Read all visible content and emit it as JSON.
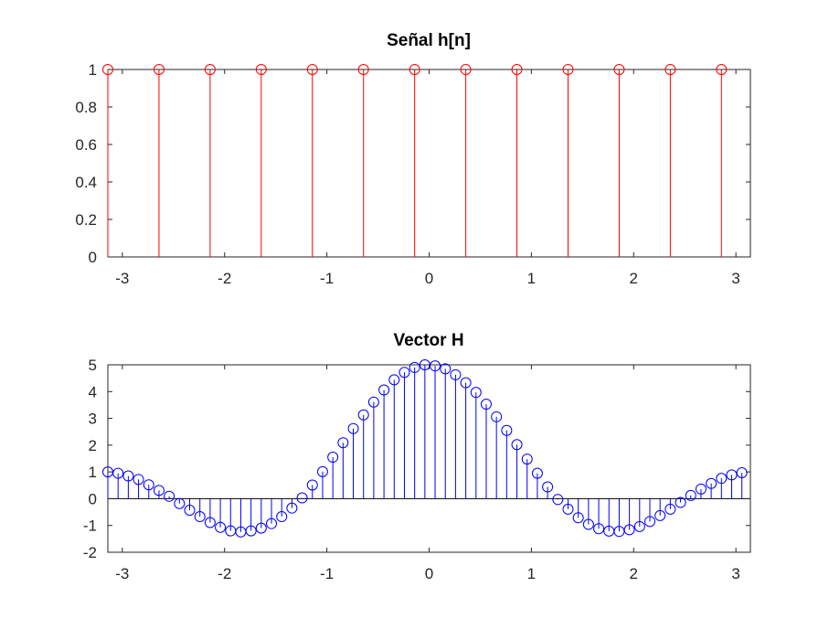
{
  "chart_data": [
    {
      "type": "stem",
      "title": "Señal h[n]",
      "xlabel": "",
      "ylabel": "",
      "xlim": [
        -3.1416,
        3.1416
      ],
      "ylim": [
        0,
        1
      ],
      "xticks": [
        -3,
        -2,
        -1,
        0,
        1,
        2,
        3
      ],
      "yticks": [
        0,
        0.2,
        0.4,
        0.6,
        0.8,
        1
      ],
      "ytick_labels": [
        "0",
        "0.2",
        "0.4",
        "0.6",
        "0.8",
        "1"
      ],
      "grid": false,
      "color": "#ff0000",
      "series": [
        {
          "x": [
            -3.1416,
            -2.6416,
            -2.1416,
            -1.6416,
            -1.1416,
            -0.6416,
            -0.1416,
            0.3584,
            0.8584,
            1.3584,
            1.8584,
            2.3584,
            2.8584
          ],
          "values": [
            1,
            1,
            1,
            1,
            1,
            1,
            1,
            1,
            1,
            1,
            1,
            1,
            1
          ]
        }
      ]
    },
    {
      "type": "stem",
      "title": "Vector H",
      "xlabel": "",
      "ylabel": "",
      "xlim": [
        -3.1416,
        3.1416
      ],
      "ylim": [
        -2,
        5
      ],
      "xticks": [
        -3,
        -2,
        -1,
        0,
        1,
        2,
        3
      ],
      "yticks": [
        -2,
        -1,
        0,
        1,
        2,
        3,
        4,
        5
      ],
      "ytick_labels": [
        "-2",
        "-1",
        "0",
        "1",
        "2",
        "3",
        "4",
        "5"
      ],
      "grid": false,
      "color": "#0000ff",
      "series": [
        {
          "x": [
            -3.1416,
            -3.0416,
            -2.9416,
            -2.8416,
            -2.7416,
            -2.6416,
            -2.5416,
            -2.4416,
            -2.3416,
            -2.2416,
            -2.1416,
            -2.0416,
            -1.9416,
            -1.8416,
            -1.7416,
            -1.6416,
            -1.5416,
            -1.4416,
            -1.3416,
            -1.2416,
            -1.1416,
            -1.0416,
            -0.9416,
            -0.8416,
            -0.7416,
            -0.6416,
            -0.5416,
            -0.4416,
            -0.3416,
            -0.2416,
            -0.1416,
            -0.0416,
            0.0584,
            0.1584,
            0.2584,
            0.3584,
            0.4584,
            0.5584,
            0.6584,
            0.7584,
            0.8584,
            0.9584,
            1.0584,
            1.1584,
            1.2584,
            1.3584,
            1.4584,
            1.5584,
            1.6584,
            1.7584,
            1.8584,
            1.9584,
            2.0584,
            2.1584,
            2.2584,
            2.3584,
            2.4584,
            2.5584,
            2.6584,
            2.7584,
            2.8584,
            2.9584,
            3.0584
          ],
          "values": [
            1.0,
            0.95,
            0.85,
            0.72,
            0.52,
            0.31,
            0.09,
            -0.18,
            -0.43,
            -0.67,
            -0.89,
            -1.07,
            -1.2,
            -1.24,
            -1.2,
            -1.1,
            -0.93,
            -0.67,
            -0.35,
            0.03,
            0.51,
            1.01,
            1.55,
            2.09,
            2.62,
            3.13,
            3.61,
            4.06,
            4.44,
            4.72,
            4.9,
            5.0,
            4.96,
            4.85,
            4.63,
            4.33,
            3.97,
            3.53,
            3.06,
            2.55,
            2.02,
            1.48,
            0.95,
            0.44,
            -0.03,
            -0.39,
            -0.71,
            -0.96,
            -1.12,
            -1.21,
            -1.22,
            -1.16,
            -1.04,
            -0.85,
            -0.63,
            -0.39,
            -0.14,
            0.12,
            0.36,
            0.57,
            0.76,
            0.89,
            0.97
          ]
        }
      ]
    }
  ]
}
